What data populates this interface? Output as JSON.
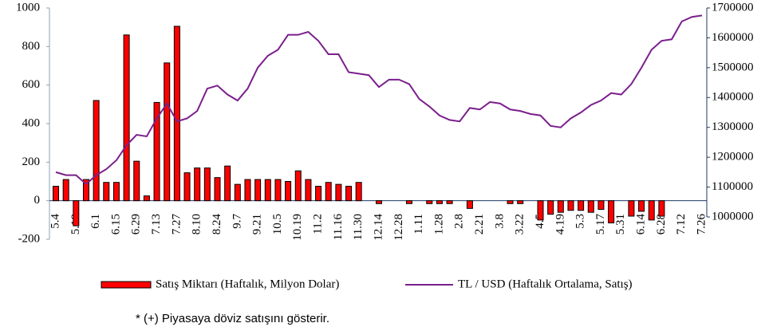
{
  "chart_data": {
    "type": "bar_line",
    "categories": [
      "5.4",
      null,
      "5.18",
      null,
      "6.1",
      null,
      "6.15",
      null,
      "6.29",
      null,
      "7.13",
      null,
      "7.27",
      null,
      "8.10",
      null,
      "8.24",
      null,
      "9.7",
      null,
      "9.21",
      null,
      "10.5",
      null,
      "10.19",
      null,
      "11.2",
      null,
      "11.16",
      null,
      "11.30",
      null,
      "12.14",
      null,
      "12.28",
      null,
      "1.11",
      null,
      "1.28",
      null,
      "2.8",
      null,
      "2.21",
      null,
      "3.8",
      null,
      "3.22",
      null,
      "4.5",
      null,
      "4.19",
      null,
      "5.3",
      null,
      "5.17",
      null,
      "5.31",
      null,
      "6.14",
      null,
      "6.28",
      null,
      "7.12",
      null,
      "7.26"
    ],
    "series": [
      {
        "name": "Satış Miktarı (Haftalık, Milyon Dolar)",
        "type": "bar",
        "color": "#ff0000",
        "values": [
          75,
          110,
          -130,
          110,
          520,
          95,
          95,
          860,
          205,
          25,
          510,
          715,
          905,
          145,
          170,
          170,
          120,
          180,
          85,
          110,
          110,
          110,
          110,
          100,
          155,
          110,
          75,
          95,
          85,
          75,
          95,
          0,
          -15,
          0,
          0,
          -15,
          0,
          -15,
          -15,
          -15,
          0,
          -40,
          0,
          0,
          0,
          -15,
          -15,
          0,
          -100,
          -70,
          -60,
          -50,
          -50,
          -60,
          -45,
          -115,
          0,
          -80,
          -55,
          -100,
          -80,
          0,
          0,
          0,
          0
        ]
      },
      {
        "name": "TL / USD (Haftalık Ortalama, Satış)",
        "type": "line",
        "axis": "y2",
        "color": "#7b1f8c",
        "values": [
          1150000,
          1140000,
          1140000,
          1110000,
          1140000,
          1160000,
          1190000,
          1240000,
          1275000,
          1270000,
          1330000,
          1380000,
          1320000,
          1330000,
          1355000,
          1430000,
          1440000,
          1410000,
          1390000,
          1430000,
          1500000,
          1540000,
          1560000,
          1610000,
          1610000,
          1620000,
          1590000,
          1545000,
          1545000,
          1485000,
          1480000,
          1475000,
          1435000,
          1460000,
          1460000,
          1445000,
          1395000,
          1370000,
          1340000,
          1325000,
          1320000,
          1365000,
          1360000,
          1385000,
          1380000,
          1360000,
          1355000,
          1345000,
          1340000,
          1305000,
          1300000,
          1330000,
          1350000,
          1375000,
          1390000,
          1415000,
          1410000,
          1445000,
          1500000,
          1560000,
          1590000,
          1595000,
          1655000,
          1670000,
          1675000
        ]
      }
    ],
    "ylim": [
      -200,
      1000
    ],
    "yticks": [
      -200,
      0,
      200,
      400,
      600,
      800,
      1000
    ],
    "y2lim": [
      1000000,
      1700000
    ],
    "y2ticks": [
      1000000,
      1100000,
      1200000,
      1300000,
      1400000,
      1500000,
      1600000,
      1700000
    ],
    "legend": "bottom",
    "footnote": "* (+) Piyasaya döviz satışını gösterir."
  }
}
